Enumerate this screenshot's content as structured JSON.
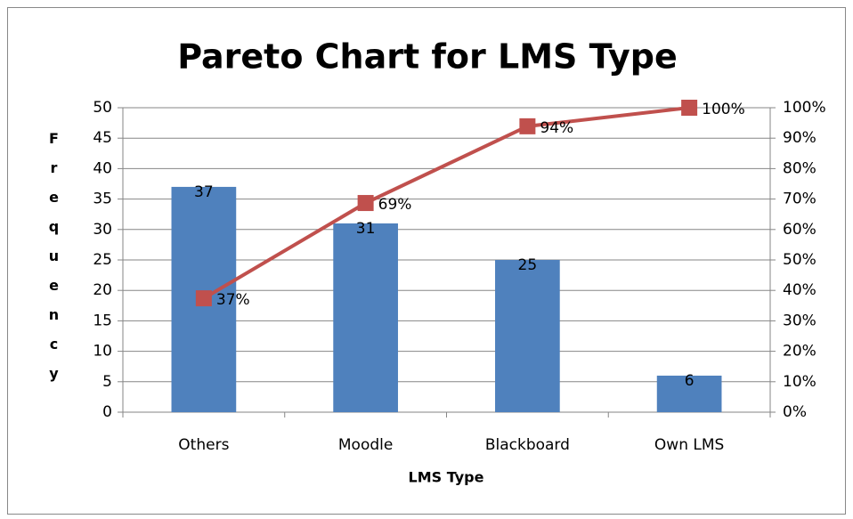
{
  "chart_data": {
    "type": "pareto",
    "title": "Pareto Chart for LMS Type",
    "x_label": "LMS Type",
    "y_label": "Frequency",
    "categories": [
      "Others",
      "Moodle",
      "Blackboard",
      "Own LMS"
    ],
    "series": [
      {
        "type": "bar",
        "color": "#4f81bd",
        "values": [
          37,
          31,
          25,
          6
        ]
      },
      {
        "type": "line",
        "axis": "y2",
        "color": "#c0504d",
        "values": [
          37.4,
          68.7,
          93.9,
          100
        ],
        "value_labels": [
          "37%",
          "69%",
          "94%",
          "100%"
        ]
      }
    ],
    "ylim": [
      0,
      50
    ],
    "yticks": [
      0,
      5,
      10,
      15,
      20,
      25,
      30,
      35,
      40,
      45,
      50
    ],
    "y2lim": [
      0,
      100
    ],
    "y2ticks": [
      {
        "value": 0,
        "label": "0%"
      },
      {
        "value": 10,
        "label": "10%"
      },
      {
        "value": 20,
        "label": "20%"
      },
      {
        "value": 30,
        "label": "30%"
      },
      {
        "value": 40,
        "label": "40%"
      },
      {
        "value": 50,
        "label": "50%"
      },
      {
        "value": 60,
        "label": "60%"
      },
      {
        "value": 70,
        "label": "70%"
      },
      {
        "value": 80,
        "label": "80%"
      },
      {
        "value": 90,
        "label": "90%"
      },
      {
        "value": 100,
        "label": "100%"
      }
    ],
    "grid": true
  }
}
